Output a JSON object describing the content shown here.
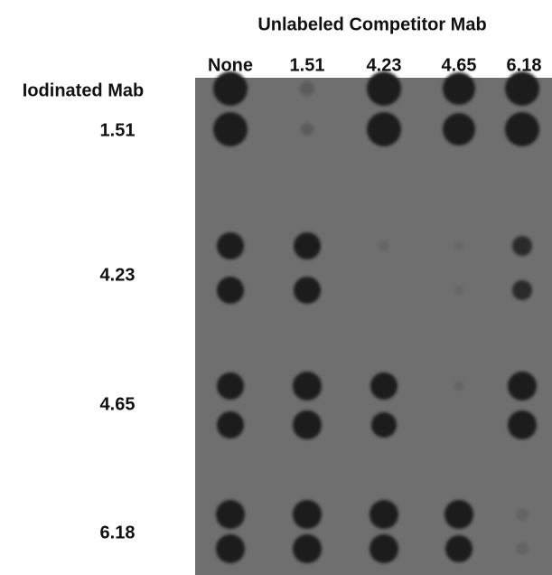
{
  "header": {
    "title": "Unlabeled Competitor Mab",
    "columns": [
      "None",
      "1.51",
      "4.23",
      "4.65",
      "6.18"
    ]
  },
  "rows": {
    "title": "Iodinated Mab",
    "labels": [
      "1.51",
      "4.23",
      "4.65",
      "6.18"
    ]
  }
}
